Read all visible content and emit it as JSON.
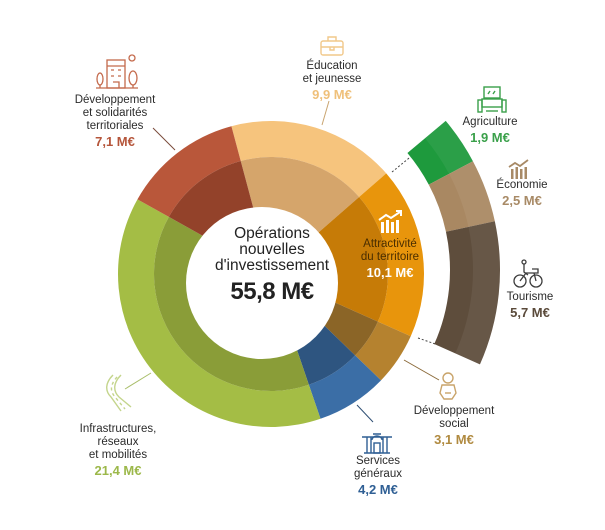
{
  "chart_data": {
    "type": "pie",
    "subtype": "donut-with-breakdown",
    "title": "Opérations nouvelles d'investissement",
    "total": {
      "label_lines": [
        "Opérations",
        "nouvelles",
        "d'investissement"
      ],
      "value": 55.8,
      "display": "55,8 M€"
    },
    "unit": "M€",
    "categories": [
      {
        "name": "Éducation et jeunesse",
        "lines": [
          "Éducation",
          "et jeunesse"
        ],
        "value": 9.9,
        "display": "9,9 M€",
        "icon": "briefcase-icon",
        "color": "#f6c47d",
        "inner_color": "#d5a56b",
        "text_color": "#efc07a"
      },
      {
        "name": "Attractivité du territoire",
        "lines": [
          "Attractivité",
          "du territoire"
        ],
        "value": 10.1,
        "display": "10,1 M€",
        "icon": "growth-chart-icon",
        "color": "#e8950c",
        "inner_color": "#c67b07",
        "text_color": "#ffffff"
      },
      {
        "name": "Développement social",
        "lines": [
          "Développement",
          "social"
        ],
        "value": 3.1,
        "display": "3,1 M€",
        "icon": "baby-icon",
        "color": "#b5822f",
        "inner_color": "#8b6527",
        "text_color": "#b08a40"
      },
      {
        "name": "Services généraux",
        "lines": [
          "Services",
          "généraux"
        ],
        "value": 4.2,
        "display": "4,2 M€",
        "icon": "town-hall-icon",
        "color": "#3b6ea6",
        "inner_color": "#2e5580",
        "text_color": "#2f5f94"
      },
      {
        "name": "Infrastructures, réseaux et mobilités",
        "lines": [
          "Infrastructures,",
          "réseaux",
          "et mobilités"
        ],
        "value": 21.4,
        "display": "21,4 M€",
        "icon": "road-icon",
        "color": "#a4bd45",
        "inner_color": "#8a9d38",
        "text_color": "#9cb84a"
      },
      {
        "name": "Développement et solidarités territoriales",
        "lines": [
          "Développement",
          "et solidarités",
          "territoriales"
        ],
        "value": 7.1,
        "display": "7,1 M€",
        "icon": "building-icon",
        "color": "#b9573a",
        "inner_color": "#93422a",
        "text_color": "#b5553a"
      }
    ],
    "breakdown": {
      "parent": "Attractivité du territoire",
      "items": [
        {
          "name": "Agriculture",
          "value": 1.9,
          "display": "1,9 M€",
          "icon": "tractor-icon",
          "color": "#1e9a3d",
          "text_color": "#3aa04a"
        },
        {
          "name": "Économie",
          "value": 2.5,
          "display": "2,5 M€",
          "icon": "economy-chart-icon",
          "color": "#a98862",
          "text_color": "#a88a66"
        },
        {
          "name": "Tourisme",
          "value": 5.7,
          "display": "5,7 M€",
          "icon": "bicycle-icon",
          "color": "#5e4d3c",
          "text_color": "#5a4a3a"
        }
      ]
    },
    "start_angle_deg": -15,
    "legend": "none"
  }
}
